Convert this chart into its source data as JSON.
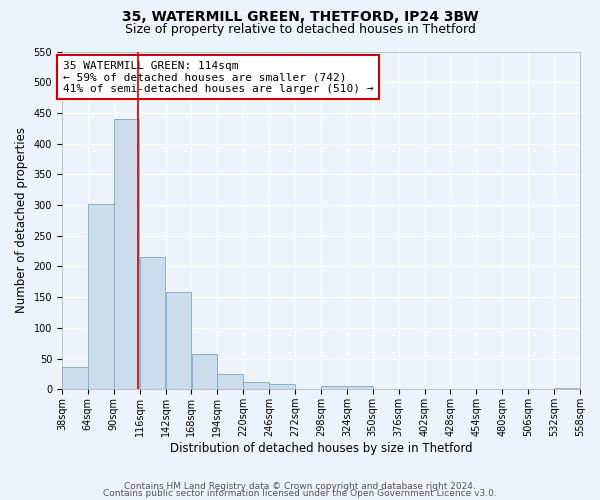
{
  "title": "35, WATERMILL GREEN, THETFORD, IP24 3BW",
  "subtitle": "Size of property relative to detached houses in Thetford",
  "xlabel": "Distribution of detached houses by size in Thetford",
  "ylabel": "Number of detached properties",
  "bar_color": "#ccdcec",
  "bar_edge_color": "#7aaac8",
  "background_color": "#eef2fa",
  "grid_color": "#ffffff",
  "bin_edges": [
    38,
    64,
    90,
    116,
    142,
    168,
    194,
    220,
    246,
    272,
    298,
    324,
    350,
    376,
    402,
    428,
    454,
    480,
    506,
    532,
    558
  ],
  "bar_heights": [
    37,
    302,
    440,
    215,
    158,
    57,
    25,
    12,
    9,
    0,
    5,
    5,
    0,
    0,
    0,
    0,
    0,
    0,
    0,
    2
  ],
  "property_size": 114,
  "vline_color": "#cc0000",
  "annotation_text": "35 WATERMILL GREEN: 114sqm\n← 59% of detached houses are smaller (742)\n41% of semi-detached houses are larger (510) →",
  "annotation_box_color": "#ffffff",
  "annotation_box_edge_color": "#cc0000",
  "ylim": [
    0,
    550
  ],
  "tick_labels": [
    "38sqm",
    "64sqm",
    "90sqm",
    "116sqm",
    "142sqm",
    "168sqm",
    "194sqm",
    "220sqm",
    "246sqm",
    "272sqm",
    "298sqm",
    "324sqm",
    "350sqm",
    "376sqm",
    "402sqm",
    "428sqm",
    "454sqm",
    "480sqm",
    "506sqm",
    "532sqm",
    "558sqm"
  ],
  "footer_line1": "Contains HM Land Registry data © Crown copyright and database right 2024.",
  "footer_line2": "Contains public sector information licensed under the Open Government Licence v3.0.",
  "title_fontsize": 10,
  "subtitle_fontsize": 9,
  "axis_label_fontsize": 8.5,
  "tick_fontsize": 7,
  "annotation_fontsize": 8,
  "footer_fontsize": 6.5
}
